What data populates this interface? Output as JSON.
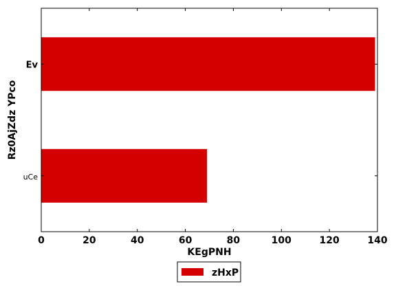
{
  "chart_data": {
    "type": "bar",
    "orientation": "horizontal",
    "categories": [
      "Ev",
      "uCe"
    ],
    "series": [
      {
        "name": "zHxP",
        "values": [
          139,
          69
        ],
        "color": "#d40000"
      }
    ],
    "xlabel": "KEgPNH",
    "ylabel": "Rz0AjZdz YPco",
    "xlim": [
      0,
      140
    ],
    "xticks": [
      "0",
      "20",
      "40",
      "60",
      "80",
      "100",
      "120",
      "140"
    ],
    "grid": false,
    "legend": {
      "position": "bottom-center"
    }
  }
}
